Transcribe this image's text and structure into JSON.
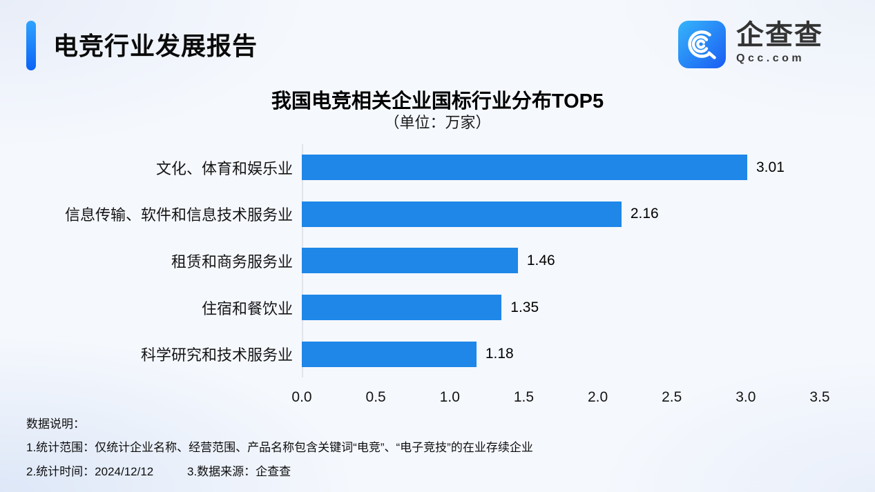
{
  "header": {
    "title": "电竞行业发展报告",
    "logo": {
      "name": "企查查",
      "domain": "Qcc.com"
    }
  },
  "chart": {
    "title": "我国电竞相关企业国标行业分布TOP5",
    "unit": "（单位：万家）"
  },
  "chart_data": {
    "type": "bar",
    "orientation": "horizontal",
    "title": "我国电竞相关企业国标行业分布TOP5",
    "unit_label": "（单位：万家）",
    "categories": [
      "文化、体育和娱乐业",
      "信息传输、软件和信息技术服务业",
      "租赁和商务服务业",
      "住宿和餐饮业",
      "科学研究和技术服务业"
    ],
    "values": [
      3.01,
      2.16,
      1.46,
      1.35,
      1.18
    ],
    "value_labels": [
      "3.01",
      "2.16",
      "1.46",
      "1.35",
      "1.18"
    ],
    "xlabel": "",
    "ylabel": "",
    "xlim": [
      0,
      3.5
    ],
    "xticks": [
      "0.0",
      "0.5",
      "1.0",
      "1.5",
      "2.0",
      "2.5",
      "3.0",
      "3.5"
    ],
    "grid": false,
    "legend": false,
    "bar_color": "#1E87E8"
  },
  "footer": {
    "heading": "数据说明：",
    "note1": "1.统计范围：仅统计企业名称、经营范围、产品名称包含关键词“电竞”、“电子竞技”的在业存续企业",
    "note2": "2.统计时间：2024/12/12",
    "note3": "3.数据来源：企查查"
  },
  "colors": {
    "bar": "#1E87E8",
    "accent_top": "#2FA3FF",
    "accent_bottom": "#0B63F6",
    "logo_start": "#36B5FA",
    "logo_end": "#1A5CF3"
  }
}
